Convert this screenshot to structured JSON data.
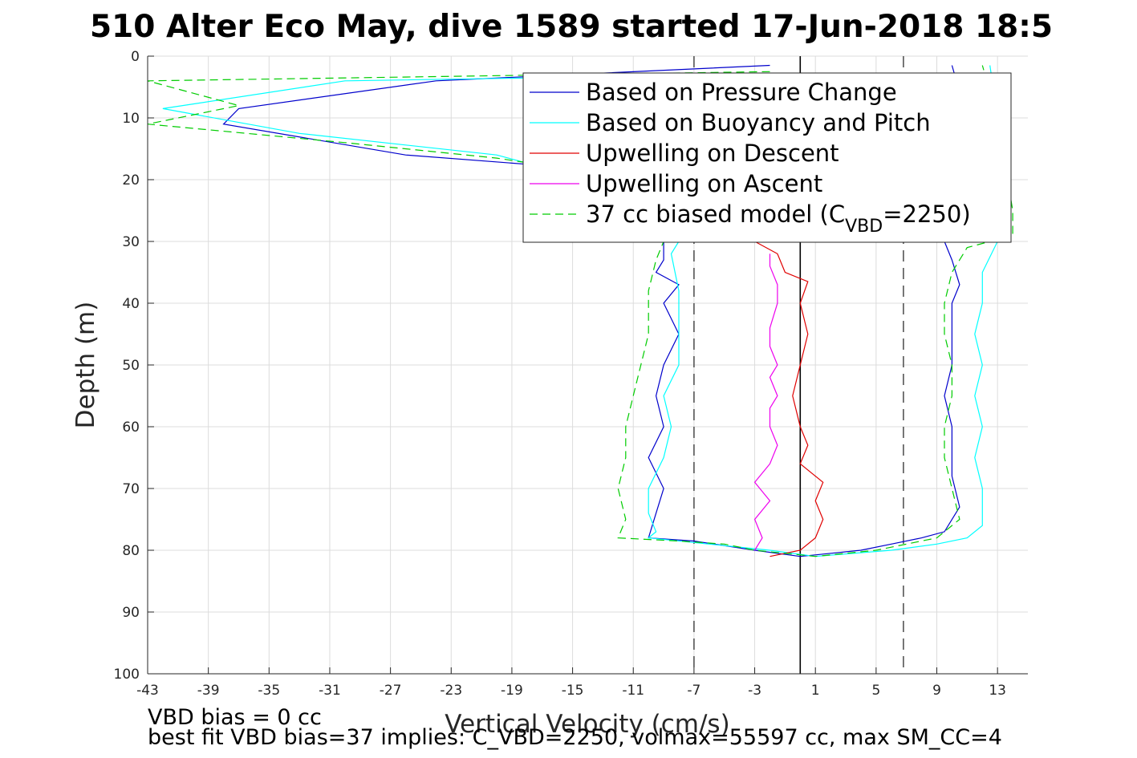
{
  "chart_data": {
    "type": "line",
    "title": "510 Alter Eco May, dive 1589 started 17-Jun-2018 18:5",
    "xlabel": "Vertical Velocity (cm/s)",
    "ylabel": "Depth (m)",
    "xlim": [
      -43,
      15
    ],
    "ylim": [
      0,
      100
    ],
    "y_reversed": true,
    "grid": true,
    "xticks": [
      -43,
      -39,
      -35,
      -31,
      -27,
      -23,
      -19,
      -15,
      -11,
      -7,
      -3,
      1,
      5,
      9,
      13
    ],
    "yticks": [
      0,
      10,
      20,
      30,
      40,
      50,
      60,
      70,
      80,
      90,
      100
    ],
    "vlines": [
      {
        "x": -7,
        "style": "dashed",
        "color": "#555555"
      },
      {
        "x": 0,
        "style": "solid",
        "color": "#000000"
      },
      {
        "x": 6.8,
        "style": "dashed",
        "color": "#555555"
      }
    ],
    "legend_position": "top-right",
    "legend": [
      {
        "label": "Based on Pressure Change",
        "color": "#0000cc",
        "dash": false
      },
      {
        "label": "Based on Buoyancy and Pitch",
        "color": "#00ffff",
        "dash": false
      },
      {
        "label": "Upwelling on Descent",
        "color": "#e00000",
        "dash": false
      },
      {
        "label": "Upwelling on Ascent",
        "color": "#ee00ee",
        "dash": false
      },
      {
        "label": "37 cc biased model (C",
        "sub": "VBD",
        "suffix": "=2250)",
        "color": "#00cc00",
        "dash": true
      }
    ],
    "series": [
      {
        "name": "Based on Pressure Change",
        "color": "#0000cc",
        "dash": false,
        "points": [
          [
            -2,
            1.5
          ],
          [
            -24,
            4
          ],
          [
            -37,
            8.5
          ],
          [
            -38,
            11
          ],
          [
            -26,
            16
          ],
          [
            -18,
            17.5
          ],
          [
            -15,
            25
          ],
          [
            -9,
            30
          ],
          [
            -9,
            33
          ],
          [
            -9.5,
            35
          ],
          [
            -8,
            37
          ],
          [
            -9,
            40
          ],
          [
            -8,
            45
          ],
          [
            -9,
            50
          ],
          [
            -9.5,
            55
          ],
          [
            -9,
            60
          ],
          [
            -10,
            65
          ],
          [
            -9,
            70
          ],
          [
            -9.5,
            74
          ],
          [
            -10,
            78
          ],
          [
            -7,
            78.5
          ],
          [
            -3,
            80
          ],
          [
            0,
            81
          ],
          [
            4,
            80
          ],
          [
            6,
            79
          ],
          [
            8,
            78
          ],
          [
            9.5,
            77
          ],
          [
            10.5,
            73
          ],
          [
            10,
            68
          ],
          [
            10,
            60
          ],
          [
            9.5,
            55
          ],
          [
            10,
            50
          ],
          [
            10,
            45
          ],
          [
            10,
            40
          ],
          [
            10.5,
            37
          ],
          [
            10,
            33
          ],
          [
            9.5,
            30
          ],
          [
            10,
            29
          ],
          [
            11,
            20
          ],
          [
            11,
            10
          ],
          [
            10,
            1.5
          ]
        ]
      },
      {
        "name": "Based on Buoyancy and Pitch",
        "color": "#00ffff",
        "dash": false,
        "points": [
          [
            -4,
            3
          ],
          [
            -30,
            4
          ],
          [
            -42,
            8.5
          ],
          [
            -33,
            12.5
          ],
          [
            -20,
            16
          ],
          [
            -17,
            18
          ],
          [
            -13,
            25
          ],
          [
            -8,
            30
          ],
          [
            -8.5,
            32
          ],
          [
            -8,
            38
          ],
          [
            -8,
            45
          ],
          [
            -8,
            50
          ],
          [
            -9,
            55
          ],
          [
            -8.5,
            60
          ],
          [
            -9,
            65
          ],
          [
            -10,
            70
          ],
          [
            -10,
            74
          ],
          [
            -9.5,
            77
          ],
          [
            -10,
            78
          ],
          [
            -6,
            79
          ],
          [
            -2,
            80
          ],
          [
            1,
            81
          ],
          [
            6,
            80
          ],
          [
            9,
            79
          ],
          [
            11,
            78
          ],
          [
            12,
            76
          ],
          [
            12,
            70
          ],
          [
            11.5,
            65
          ],
          [
            12,
            60
          ],
          [
            11.5,
            55
          ],
          [
            12,
            50
          ],
          [
            11.5,
            45
          ],
          [
            12,
            40
          ],
          [
            12,
            35
          ],
          [
            13,
            30
          ],
          [
            13,
            25
          ],
          [
            13,
            10
          ],
          [
            12.5,
            1.5
          ]
        ]
      },
      {
        "name": "Upwelling on Descent",
        "color": "#e00000",
        "dash": false,
        "points": [
          [
            -3,
            30
          ],
          [
            -1.5,
            32
          ],
          [
            -1,
            35
          ],
          [
            0.5,
            36.5
          ],
          [
            0,
            40
          ],
          [
            0.5,
            45
          ],
          [
            0,
            50
          ],
          [
            -0.5,
            55
          ],
          [
            0,
            60
          ],
          [
            0.5,
            63
          ],
          [
            0,
            66
          ],
          [
            1.5,
            69
          ],
          [
            1,
            72
          ],
          [
            1.5,
            75
          ],
          [
            1,
            78
          ],
          [
            0,
            80
          ],
          [
            -2,
            81
          ]
        ]
      },
      {
        "name": "Upwelling on Ascent",
        "color": "#ee00ee",
        "dash": false,
        "points": [
          [
            -3,
            80
          ],
          [
            -2.5,
            78
          ],
          [
            -3,
            75
          ],
          [
            -2,
            72
          ],
          [
            -3,
            69
          ],
          [
            -2,
            66
          ],
          [
            -1.5,
            63
          ],
          [
            -2,
            60
          ],
          [
            -2,
            57
          ],
          [
            -1.5,
            55
          ],
          [
            -2,
            52
          ],
          [
            -1.5,
            50
          ],
          [
            -2,
            47
          ],
          [
            -2,
            44
          ],
          [
            -1.5,
            40
          ],
          [
            -1.5,
            37
          ],
          [
            -2,
            34
          ],
          [
            -2,
            32
          ]
        ]
      },
      {
        "name": "37 cc biased model (CVBD=2250)",
        "color": "#00cc00",
        "dash": true,
        "points": [
          [
            -2,
            2.5
          ],
          [
            -43,
            4
          ],
          [
            -37,
            8
          ],
          [
            -43,
            11
          ],
          [
            -30,
            14
          ],
          [
            -20,
            16.5
          ],
          [
            -16,
            18
          ],
          [
            -12,
            25
          ],
          [
            -9,
            30
          ],
          [
            -9.5,
            33
          ],
          [
            -10,
            38
          ],
          [
            -10,
            45
          ],
          [
            -10.5,
            50
          ],
          [
            -11,
            55
          ],
          [
            -11.5,
            60
          ],
          [
            -11.5,
            65
          ],
          [
            -12,
            70
          ],
          [
            -11.5,
            75
          ],
          [
            -12,
            78
          ],
          [
            -8,
            78.5
          ],
          [
            -5,
            79
          ],
          [
            -3,
            80
          ],
          [
            1,
            81
          ],
          [
            5,
            80
          ],
          [
            7,
            79
          ],
          [
            9,
            78
          ],
          [
            10.5,
            75
          ],
          [
            10,
            70
          ],
          [
            9.5,
            65
          ],
          [
            9.5,
            60
          ],
          [
            10,
            55
          ],
          [
            10,
            50
          ],
          [
            9.5,
            45
          ],
          [
            9.5,
            40
          ],
          [
            10,
            35
          ],
          [
            11,
            31
          ],
          [
            14,
            29
          ],
          [
            14,
            25
          ],
          [
            13,
            10
          ],
          [
            12,
            1.5
          ]
        ]
      }
    ]
  },
  "footer": {
    "line1": "VBD bias = 0 cc",
    "line2": "best fit VBD bias=37 implies: C_VBD=2250, volmax=55597 cc, max SM_CC=4"
  }
}
